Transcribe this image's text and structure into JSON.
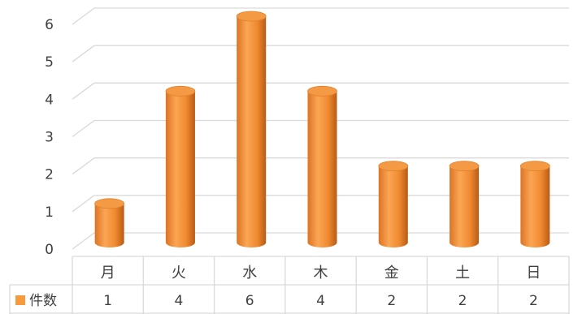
{
  "chart_data": {
    "type": "bar",
    "style": "3d-cylinder",
    "categories": [
      "月",
      "火",
      "水",
      "木",
      "金",
      "土",
      "日"
    ],
    "series": [
      {
        "name": "件数",
        "values": [
          1,
          4,
          6,
          4,
          2,
          2,
          2
        ],
        "color": "#F79A3E"
      }
    ],
    "ylim": [
      0,
      6
    ],
    "yticks": [
      "0",
      "1",
      "2",
      "3",
      "4",
      "5",
      "6"
    ],
    "grid": true,
    "data_table": true,
    "title": "",
    "xlabel": "",
    "ylabel": ""
  }
}
